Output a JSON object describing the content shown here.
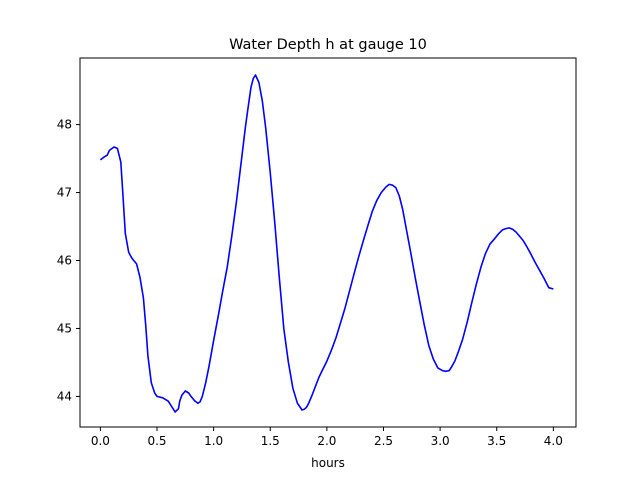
{
  "chart_data": {
    "type": "line",
    "title": "Water Depth h at gauge 10",
    "xlabel": "hours",
    "ylabel": "",
    "xlim": [
      -0.18,
      4.2
    ],
    "ylim": [
      43.55,
      48.98
    ],
    "xticks": [
      0.0,
      0.5,
      1.0,
      1.5,
      2.0,
      2.5,
      3.0,
      3.5,
      4.0
    ],
    "xtick_labels": [
      "0.0",
      "0.5",
      "1.0",
      "1.5",
      "2.0",
      "2.5",
      "3.0",
      "3.5",
      "4.0"
    ],
    "yticks": [
      44,
      45,
      46,
      47,
      48
    ],
    "ytick_labels": [
      "44",
      "45",
      "46",
      "47",
      "48"
    ],
    "grid": false,
    "legend": "none",
    "series": [
      {
        "color": "#0000ff",
        "x": [
          0.0,
          0.03,
          0.06,
          0.08,
          0.12,
          0.15,
          0.18,
          0.2,
          0.22,
          0.25,
          0.28,
          0.32,
          0.35,
          0.38,
          0.4,
          0.42,
          0.45,
          0.48,
          0.5,
          0.55,
          0.6,
          0.63,
          0.66,
          0.69,
          0.7,
          0.72,
          0.75,
          0.78,
          0.8,
          0.83,
          0.86,
          0.88,
          0.9,
          0.93,
          0.96,
          1.0,
          1.04,
          1.08,
          1.12,
          1.16,
          1.2,
          1.24,
          1.28,
          1.3,
          1.33,
          1.35,
          1.37,
          1.4,
          1.43,
          1.46,
          1.5,
          1.54,
          1.58,
          1.62,
          1.66,
          1.7,
          1.74,
          1.78,
          1.8,
          1.82,
          1.84,
          1.87,
          1.9,
          1.93,
          1.97,
          2.0,
          2.04,
          2.08,
          2.12,
          2.16,
          2.2,
          2.24,
          2.28,
          2.32,
          2.36,
          2.4,
          2.44,
          2.48,
          2.52,
          2.55,
          2.58,
          2.61,
          2.64,
          2.67,
          2.7,
          2.74,
          2.78,
          2.82,
          2.86,
          2.9,
          2.94,
          2.98,
          3.02,
          3.05,
          3.08,
          3.1,
          3.13,
          3.16,
          3.2,
          3.24,
          3.28,
          3.32,
          3.36,
          3.4,
          3.44,
          3.48,
          3.52,
          3.55,
          3.58,
          3.61,
          3.64,
          3.67,
          3.7,
          3.73,
          3.76,
          3.8,
          3.84,
          3.88,
          3.92,
          3.96,
          4.0
        ],
        "y": [
          47.48,
          47.52,
          47.55,
          47.62,
          47.67,
          47.65,
          47.45,
          46.95,
          46.4,
          46.12,
          46.03,
          45.95,
          45.75,
          45.45,
          45.05,
          44.6,
          44.2,
          44.05,
          44.0,
          43.98,
          43.93,
          43.85,
          43.77,
          43.82,
          43.93,
          44.02,
          44.08,
          44.05,
          44.0,
          43.94,
          43.9,
          43.92,
          44.0,
          44.2,
          44.45,
          44.82,
          45.18,
          45.55,
          45.9,
          46.35,
          46.85,
          47.4,
          47.95,
          48.2,
          48.55,
          48.68,
          48.73,
          48.62,
          48.35,
          47.95,
          47.3,
          46.55,
          45.75,
          45.0,
          44.5,
          44.12,
          43.9,
          43.8,
          43.81,
          43.84,
          43.9,
          44.02,
          44.15,
          44.28,
          44.42,
          44.52,
          44.68,
          44.86,
          45.08,
          45.3,
          45.55,
          45.8,
          46.05,
          46.28,
          46.5,
          46.72,
          46.88,
          47.0,
          47.08,
          47.12,
          47.11,
          47.07,
          46.95,
          46.75,
          46.48,
          46.12,
          45.75,
          45.4,
          45.05,
          44.75,
          44.55,
          44.42,
          44.38,
          44.37,
          44.38,
          44.43,
          44.52,
          44.65,
          44.85,
          45.1,
          45.38,
          45.65,
          45.9,
          46.1,
          46.24,
          46.32,
          46.4,
          46.45,
          46.47,
          46.48,
          46.46,
          46.42,
          46.36,
          46.3,
          46.22,
          46.1,
          45.97,
          45.85,
          45.73,
          45.6,
          45.58
        ]
      }
    ]
  }
}
